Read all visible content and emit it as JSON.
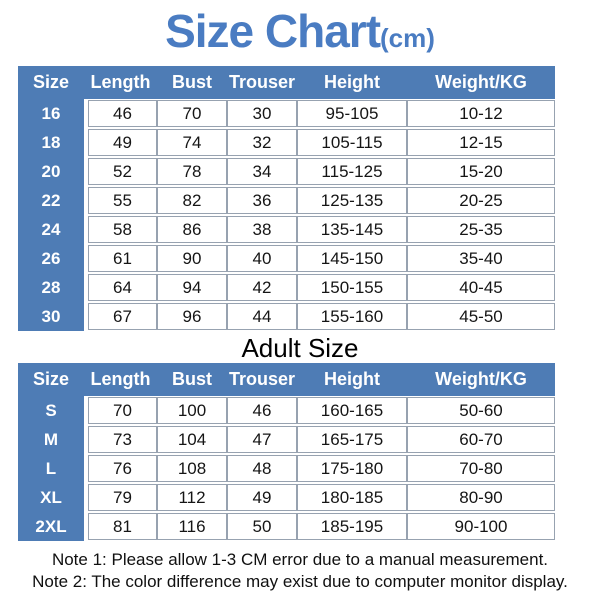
{
  "title": {
    "main": "Size Chart",
    "unit": "(cm)"
  },
  "colors": {
    "title_blue": "#4a7cc2",
    "accent_blue": "#4e7cb5",
    "cell_border": "#97a2b0"
  },
  "columns": [
    "Size",
    "Length",
    "Bust",
    "Trouser",
    "Height",
    "Weight/KG"
  ],
  "kids_table": {
    "rows": [
      {
        "size": "16",
        "values": [
          "46",
          "70",
          "30",
          "95-105",
          "10-12"
        ]
      },
      {
        "size": "18",
        "values": [
          "49",
          "74",
          "32",
          "105-115",
          "12-15"
        ]
      },
      {
        "size": "20",
        "values": [
          "52",
          "78",
          "34",
          "115-125",
          "15-20"
        ]
      },
      {
        "size": "22",
        "values": [
          "55",
          "82",
          "36",
          "125-135",
          "20-25"
        ]
      },
      {
        "size": "24",
        "values": [
          "58",
          "86",
          "38",
          "135-145",
          "25-35"
        ]
      },
      {
        "size": "26",
        "values": [
          "61",
          "90",
          "40",
          "145-150",
          "35-40"
        ]
      },
      {
        "size": "28",
        "values": [
          "64",
          "94",
          "42",
          "150-155",
          "40-45"
        ]
      },
      {
        "size": "30",
        "values": [
          "67",
          "96",
          "44",
          "155-160",
          "45-50"
        ]
      }
    ]
  },
  "adult_section_title": "Adult Size",
  "adult_table": {
    "rows": [
      {
        "size": "S",
        "values": [
          "70",
          "100",
          "46",
          "160-165",
          "50-60"
        ]
      },
      {
        "size": "M",
        "values": [
          "73",
          "104",
          "47",
          "165-175",
          "60-70"
        ]
      },
      {
        "size": "L",
        "values": [
          "76",
          "108",
          "48",
          "175-180",
          "70-80"
        ]
      },
      {
        "size": "XL",
        "values": [
          "79",
          "112",
          "49",
          "180-185",
          "80-90"
        ]
      },
      {
        "size": "2XL",
        "values": [
          "81",
          "116",
          "50",
          "185-195",
          "90-100"
        ]
      }
    ]
  },
  "notes": [
    "Note 1: Please allow 1-3 CM error due to a manual measurement.",
    "Note 2: The color difference may exist due to computer monitor display."
  ]
}
